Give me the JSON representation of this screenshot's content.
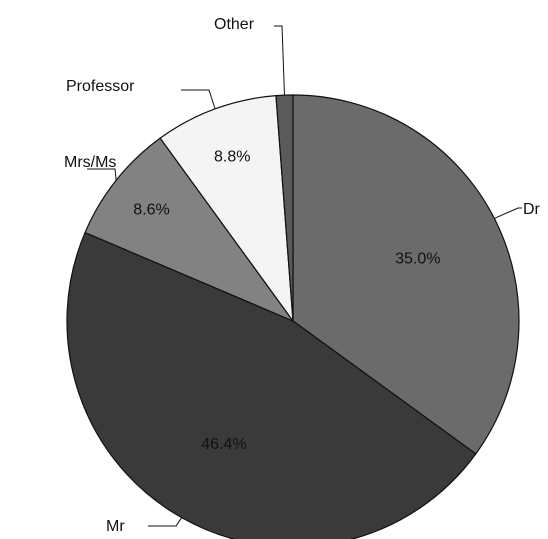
{
  "chart_data": {
    "type": "pie",
    "title": "",
    "categories": [
      "Dr",
      "Mr",
      "Mrs/Ms",
      "Professor",
      "Other"
    ],
    "values": [
      35.0,
      46.4,
      8.6,
      8.8,
      1.2
    ],
    "value_labels": [
      "35.0%",
      "46.4%",
      "8.6%",
      "8.8%",
      ""
    ],
    "colors": [
      "#6b6b6b",
      "#3a3a3a",
      "#828282",
      "#f4f4f4",
      "#5a5a5a"
    ],
    "start_angle_degrees": 0,
    "direction": "clockwise",
    "legend": "callout labels"
  }
}
